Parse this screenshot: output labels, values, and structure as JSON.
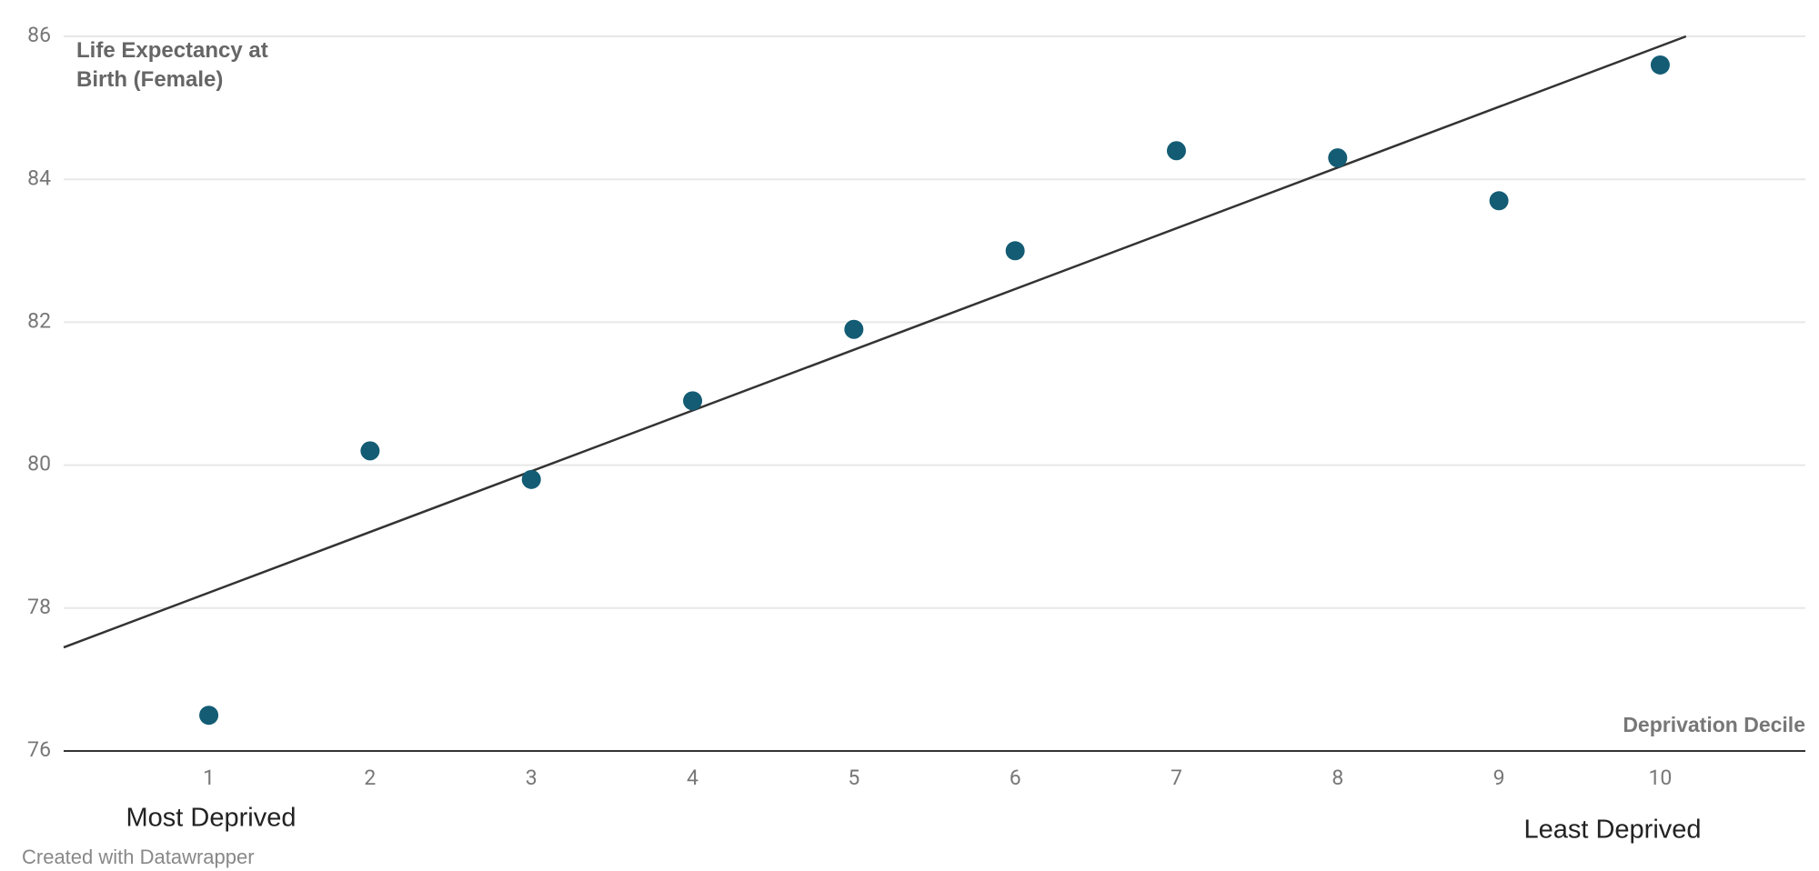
{
  "chart_data": {
    "type": "scatter",
    "y_label": "Life Expectancy at Birth (Female)",
    "x_label": "Deprivation Decile",
    "annotations": [
      "Most Deprived",
      "Least Deprived"
    ],
    "credit": "Created with Datawrapper",
    "x": [
      1,
      2,
      3,
      4,
      5,
      6,
      7,
      8,
      9,
      10
    ],
    "values": [
      76.5,
      80.2,
      79.8,
      80.9,
      81.9,
      83.0,
      84.4,
      84.3,
      83.7,
      85.6
    ],
    "color": "#135c74",
    "trend_line": {
      "x": [
        0.1,
        10.16
      ],
      "y": [
        77.45,
        86
      ]
    },
    "xlim": [
      0.1,
      10.9
    ],
    "xticks": [
      1,
      2,
      3,
      4,
      5,
      6,
      7,
      8,
      9,
      10
    ],
    "ylim": [
      76,
      86
    ],
    "yticks": [
      76,
      78,
      80,
      82,
      84,
      86
    ],
    "grid": true
  }
}
